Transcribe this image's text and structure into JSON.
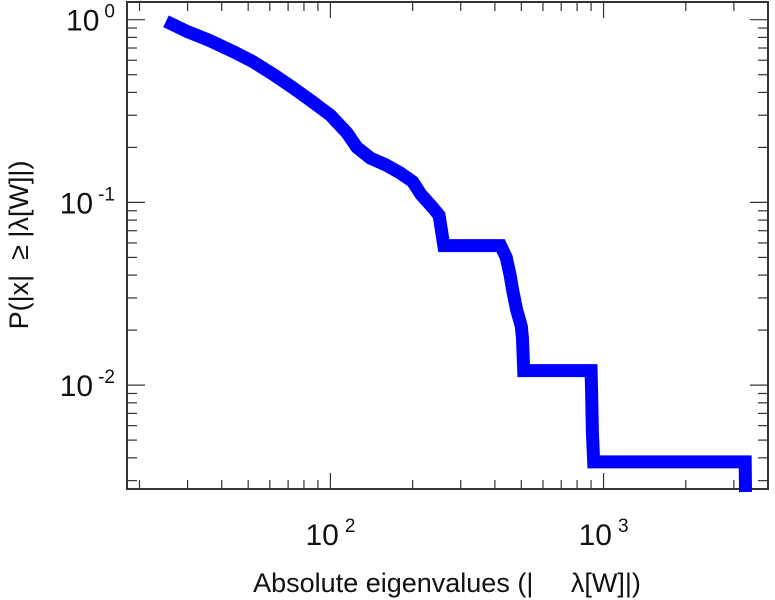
{
  "chart_data": {
    "type": "line",
    "title": "",
    "xlabel": "Absolute eigenvalues (|     λ[W]|)",
    "ylabel": "P(|x|  ≥ |λ[W]|)",
    "x_scale": "log",
    "y_scale": "log",
    "xlim": [
      18,
      4000
    ],
    "ylim": [
      0.0027,
      1.25
    ],
    "grid": false,
    "legend": "none",
    "line_color": "#0000ff",
    "x_ticks": [
      {
        "value": 100,
        "base": "10",
        "exp": "2"
      },
      {
        "value": 1000,
        "base": "10",
        "exp": "3"
      }
    ],
    "y_ticks": [
      {
        "value": 1,
        "base": "10",
        "exp": "0"
      },
      {
        "value": 0.1,
        "base": "10",
        "exp": "-1"
      },
      {
        "value": 0.01,
        "base": "10",
        "exp": "-2"
      }
    ],
    "series": [
      {
        "points": [
          [
            25,
            0.98
          ],
          [
            30,
            0.86
          ],
          [
            36,
            0.77
          ],
          [
            44,
            0.67
          ],
          [
            52,
            0.59
          ],
          [
            62,
            0.5
          ],
          [
            72,
            0.43
          ],
          [
            85,
            0.36
          ],
          [
            100,
            0.3
          ],
          [
            115,
            0.24
          ],
          [
            125,
            0.2
          ],
          [
            140,
            0.175
          ],
          [
            160,
            0.16
          ],
          [
            180,
            0.145
          ],
          [
            200,
            0.13
          ],
          [
            215,
            0.11
          ],
          [
            235,
            0.095
          ],
          [
            250,
            0.085
          ],
          [
            255,
            0.07
          ],
          [
            260,
            0.058
          ],
          [
            420,
            0.058
          ],
          [
            440,
            0.05
          ],
          [
            455,
            0.04
          ],
          [
            465,
            0.033
          ],
          [
            480,
            0.026
          ],
          [
            500,
            0.021
          ],
          [
            505,
            0.018
          ],
          [
            510,
            0.012
          ],
          [
            900,
            0.012
          ],
          [
            905,
            0.0086
          ],
          [
            910,
            0.0055
          ],
          [
            920,
            0.0038
          ],
          [
            3300,
            0.0038
          ],
          [
            3310,
            0.0026
          ]
        ]
      }
    ]
  }
}
